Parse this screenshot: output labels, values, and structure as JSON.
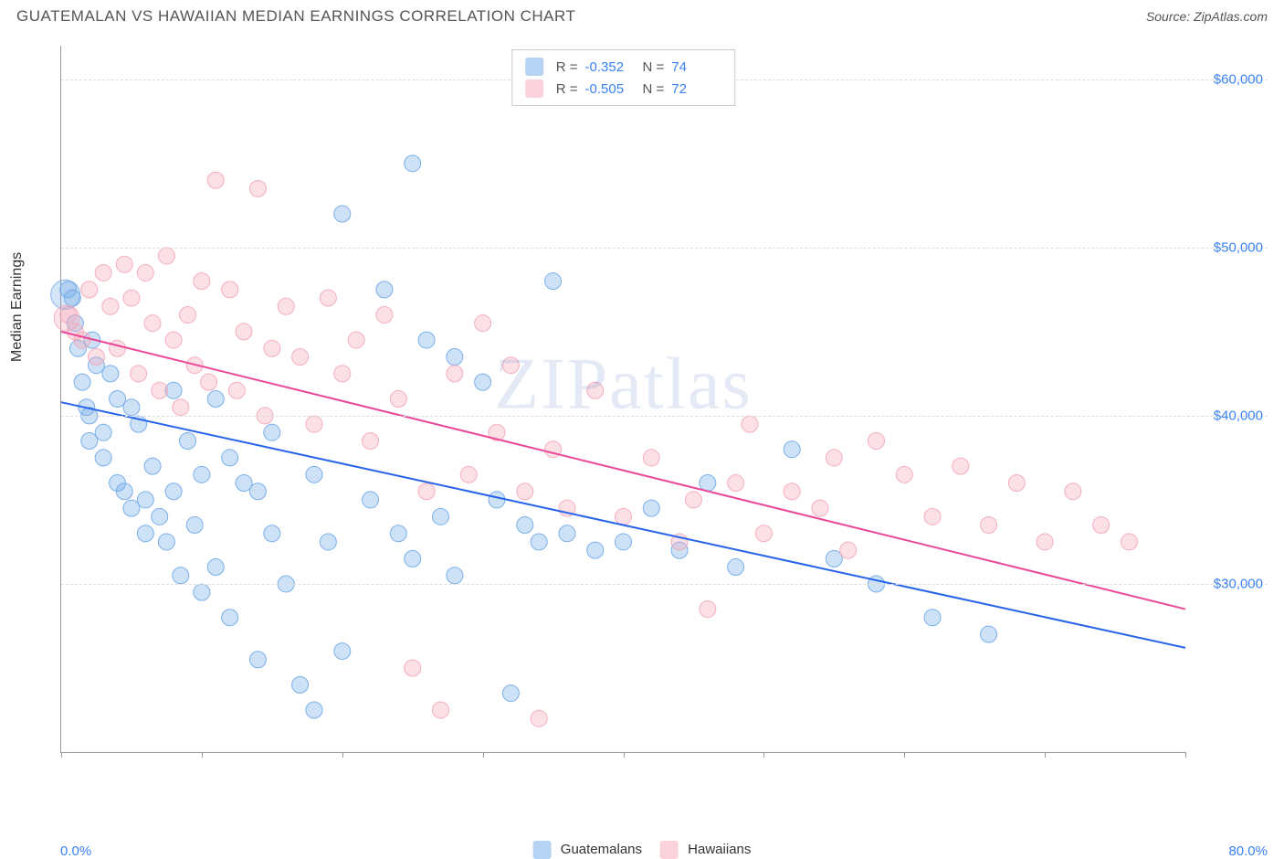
{
  "title": "GUATEMALAN VS HAWAIIAN MEDIAN EARNINGS CORRELATION CHART",
  "source": "Source: ZipAtlas.com",
  "ylabel": "Median Earnings",
  "watermark": "ZIPatlas",
  "chart": {
    "type": "scatter",
    "xlim": [
      0,
      80
    ],
    "xmin_label": "0.0%",
    "xmax_label": "80.0%",
    "ylim": [
      20000,
      62000
    ],
    "ygrid": [
      30000,
      40000,
      50000,
      60000
    ],
    "ytick_labels": [
      "$30,000",
      "$40,000",
      "$50,000",
      "$60,000"
    ],
    "xticks_pct": [
      0,
      10,
      20,
      30,
      40,
      50,
      60,
      70,
      80
    ],
    "background_color": "#ffffff",
    "grid_color": "#dddddd",
    "axis_color": "#999999",
    "marker_radius": 9,
    "marker_fill_opacity": 0.35,
    "marker_stroke_opacity": 0.9,
    "marker_stroke_width": 1,
    "trend_line_width": 2,
    "series": [
      {
        "name": "Guatemalans",
        "color": "#6fa8e8",
        "line_color": "#2563eb",
        "R": "-0.352",
        "N": "74",
        "trend": {
          "x1": 0,
          "y1": 40800,
          "x2": 80,
          "y2": 26200
        },
        "points": [
          [
            0.5,
            47500
          ],
          [
            0.8,
            47000
          ],
          [
            1,
            45500
          ],
          [
            1.2,
            44000
          ],
          [
            1.5,
            42000
          ],
          [
            1.8,
            40500
          ],
          [
            2,
            40000
          ],
          [
            2,
            38500
          ],
          [
            2.2,
            44500
          ],
          [
            2.5,
            43000
          ],
          [
            3,
            39000
          ],
          [
            3,
            37500
          ],
          [
            3.5,
            42500
          ],
          [
            4,
            41000
          ],
          [
            4,
            36000
          ],
          [
            4.5,
            35500
          ],
          [
            5,
            34500
          ],
          [
            5,
            40500
          ],
          [
            5.5,
            39500
          ],
          [
            6,
            35000
          ],
          [
            6,
            33000
          ],
          [
            6.5,
            37000
          ],
          [
            7,
            34000
          ],
          [
            7.5,
            32500
          ],
          [
            8,
            41500
          ],
          [
            8,
            35500
          ],
          [
            8.5,
            30500
          ],
          [
            9,
            38500
          ],
          [
            9.5,
            33500
          ],
          [
            10,
            36500
          ],
          [
            10,
            29500
          ],
          [
            11,
            41000
          ],
          [
            11,
            31000
          ],
          [
            12,
            37500
          ],
          [
            12,
            28000
          ],
          [
            13,
            36000
          ],
          [
            14,
            35500
          ],
          [
            14,
            25500
          ],
          [
            15,
            39000
          ],
          [
            15,
            33000
          ],
          [
            16,
            30000
          ],
          [
            17,
            24000
          ],
          [
            18,
            22500
          ],
          [
            18,
            36500
          ],
          [
            19,
            32500
          ],
          [
            20,
            52000
          ],
          [
            20,
            26000
          ],
          [
            22,
            35000
          ],
          [
            23,
            47500
          ],
          [
            24,
            33000
          ],
          [
            25,
            55000
          ],
          [
            25,
            31500
          ],
          [
            26,
            44500
          ],
          [
            27,
            34000
          ],
          [
            28,
            43500
          ],
          [
            28,
            30500
          ],
          [
            30,
            42000
          ],
          [
            31,
            35000
          ],
          [
            32,
            23500
          ],
          [
            33,
            33500
          ],
          [
            34,
            32500
          ],
          [
            35,
            48000
          ],
          [
            36,
            33000
          ],
          [
            38,
            32000
          ],
          [
            40,
            32500
          ],
          [
            42,
            34500
          ],
          [
            44,
            32000
          ],
          [
            46,
            36000
          ],
          [
            48,
            31000
          ],
          [
            52,
            38000
          ],
          [
            55,
            31500
          ],
          [
            58,
            30000
          ],
          [
            62,
            28000
          ],
          [
            66,
            27000
          ]
        ]
      },
      {
        "name": "Hawaiians",
        "color": "#f4a6b8",
        "line_color": "#ec4899",
        "R": "-0.505",
        "N": "72",
        "trend": {
          "x1": 0,
          "y1": 45000,
          "x2": 80,
          "y2": 28500
        },
        "points": [
          [
            0.5,
            46000
          ],
          [
            1,
            45000
          ],
          [
            1.5,
            44500
          ],
          [
            2,
            47500
          ],
          [
            2.5,
            43500
          ],
          [
            3,
            48500
          ],
          [
            3.5,
            46500
          ],
          [
            4,
            44000
          ],
          [
            4.5,
            49000
          ],
          [
            5,
            47000
          ],
          [
            5.5,
            42500
          ],
          [
            6,
            48500
          ],
          [
            6.5,
            45500
          ],
          [
            7,
            41500
          ],
          [
            7.5,
            49500
          ],
          [
            8,
            44500
          ],
          [
            8.5,
            40500
          ],
          [
            9,
            46000
          ],
          [
            9.5,
            43000
          ],
          [
            10,
            48000
          ],
          [
            10.5,
            42000
          ],
          [
            11,
            54000
          ],
          [
            12,
            47500
          ],
          [
            12.5,
            41500
          ],
          [
            13,
            45000
          ],
          [
            14,
            53500
          ],
          [
            14.5,
            40000
          ],
          [
            15,
            44000
          ],
          [
            16,
            46500
          ],
          [
            17,
            43500
          ],
          [
            18,
            39500
          ],
          [
            19,
            47000
          ],
          [
            20,
            42500
          ],
          [
            21,
            44500
          ],
          [
            22,
            38500
          ],
          [
            23,
            46000
          ],
          [
            24,
            41000
          ],
          [
            25,
            25000
          ],
          [
            26,
            35500
          ],
          [
            27,
            22500
          ],
          [
            28,
            42500
          ],
          [
            29,
            36500
          ],
          [
            30,
            45500
          ],
          [
            31,
            39000
          ],
          [
            32,
            43000
          ],
          [
            33,
            35500
          ],
          [
            34,
            22000
          ],
          [
            35,
            38000
          ],
          [
            36,
            34500
          ],
          [
            38,
            41500
          ],
          [
            40,
            34000
          ],
          [
            42,
            37500
          ],
          [
            44,
            32500
          ],
          [
            45,
            35000
          ],
          [
            46,
            28500
          ],
          [
            48,
            36000
          ],
          [
            49,
            39500
          ],
          [
            50,
            33000
          ],
          [
            52,
            35500
          ],
          [
            54,
            34500
          ],
          [
            55,
            37500
          ],
          [
            56,
            32000
          ],
          [
            58,
            38500
          ],
          [
            60,
            36500
          ],
          [
            62,
            34000
          ],
          [
            64,
            37000
          ],
          [
            66,
            33500
          ],
          [
            68,
            36000
          ],
          [
            70,
            32500
          ],
          [
            72,
            35500
          ],
          [
            74,
            33500
          ],
          [
            76,
            32500
          ]
        ]
      }
    ]
  },
  "top_legend": {
    "r_label": "R =",
    "n_label": "N ="
  },
  "bottom_legend": {
    "items": [
      "Guatemalans",
      "Hawaiians"
    ]
  }
}
